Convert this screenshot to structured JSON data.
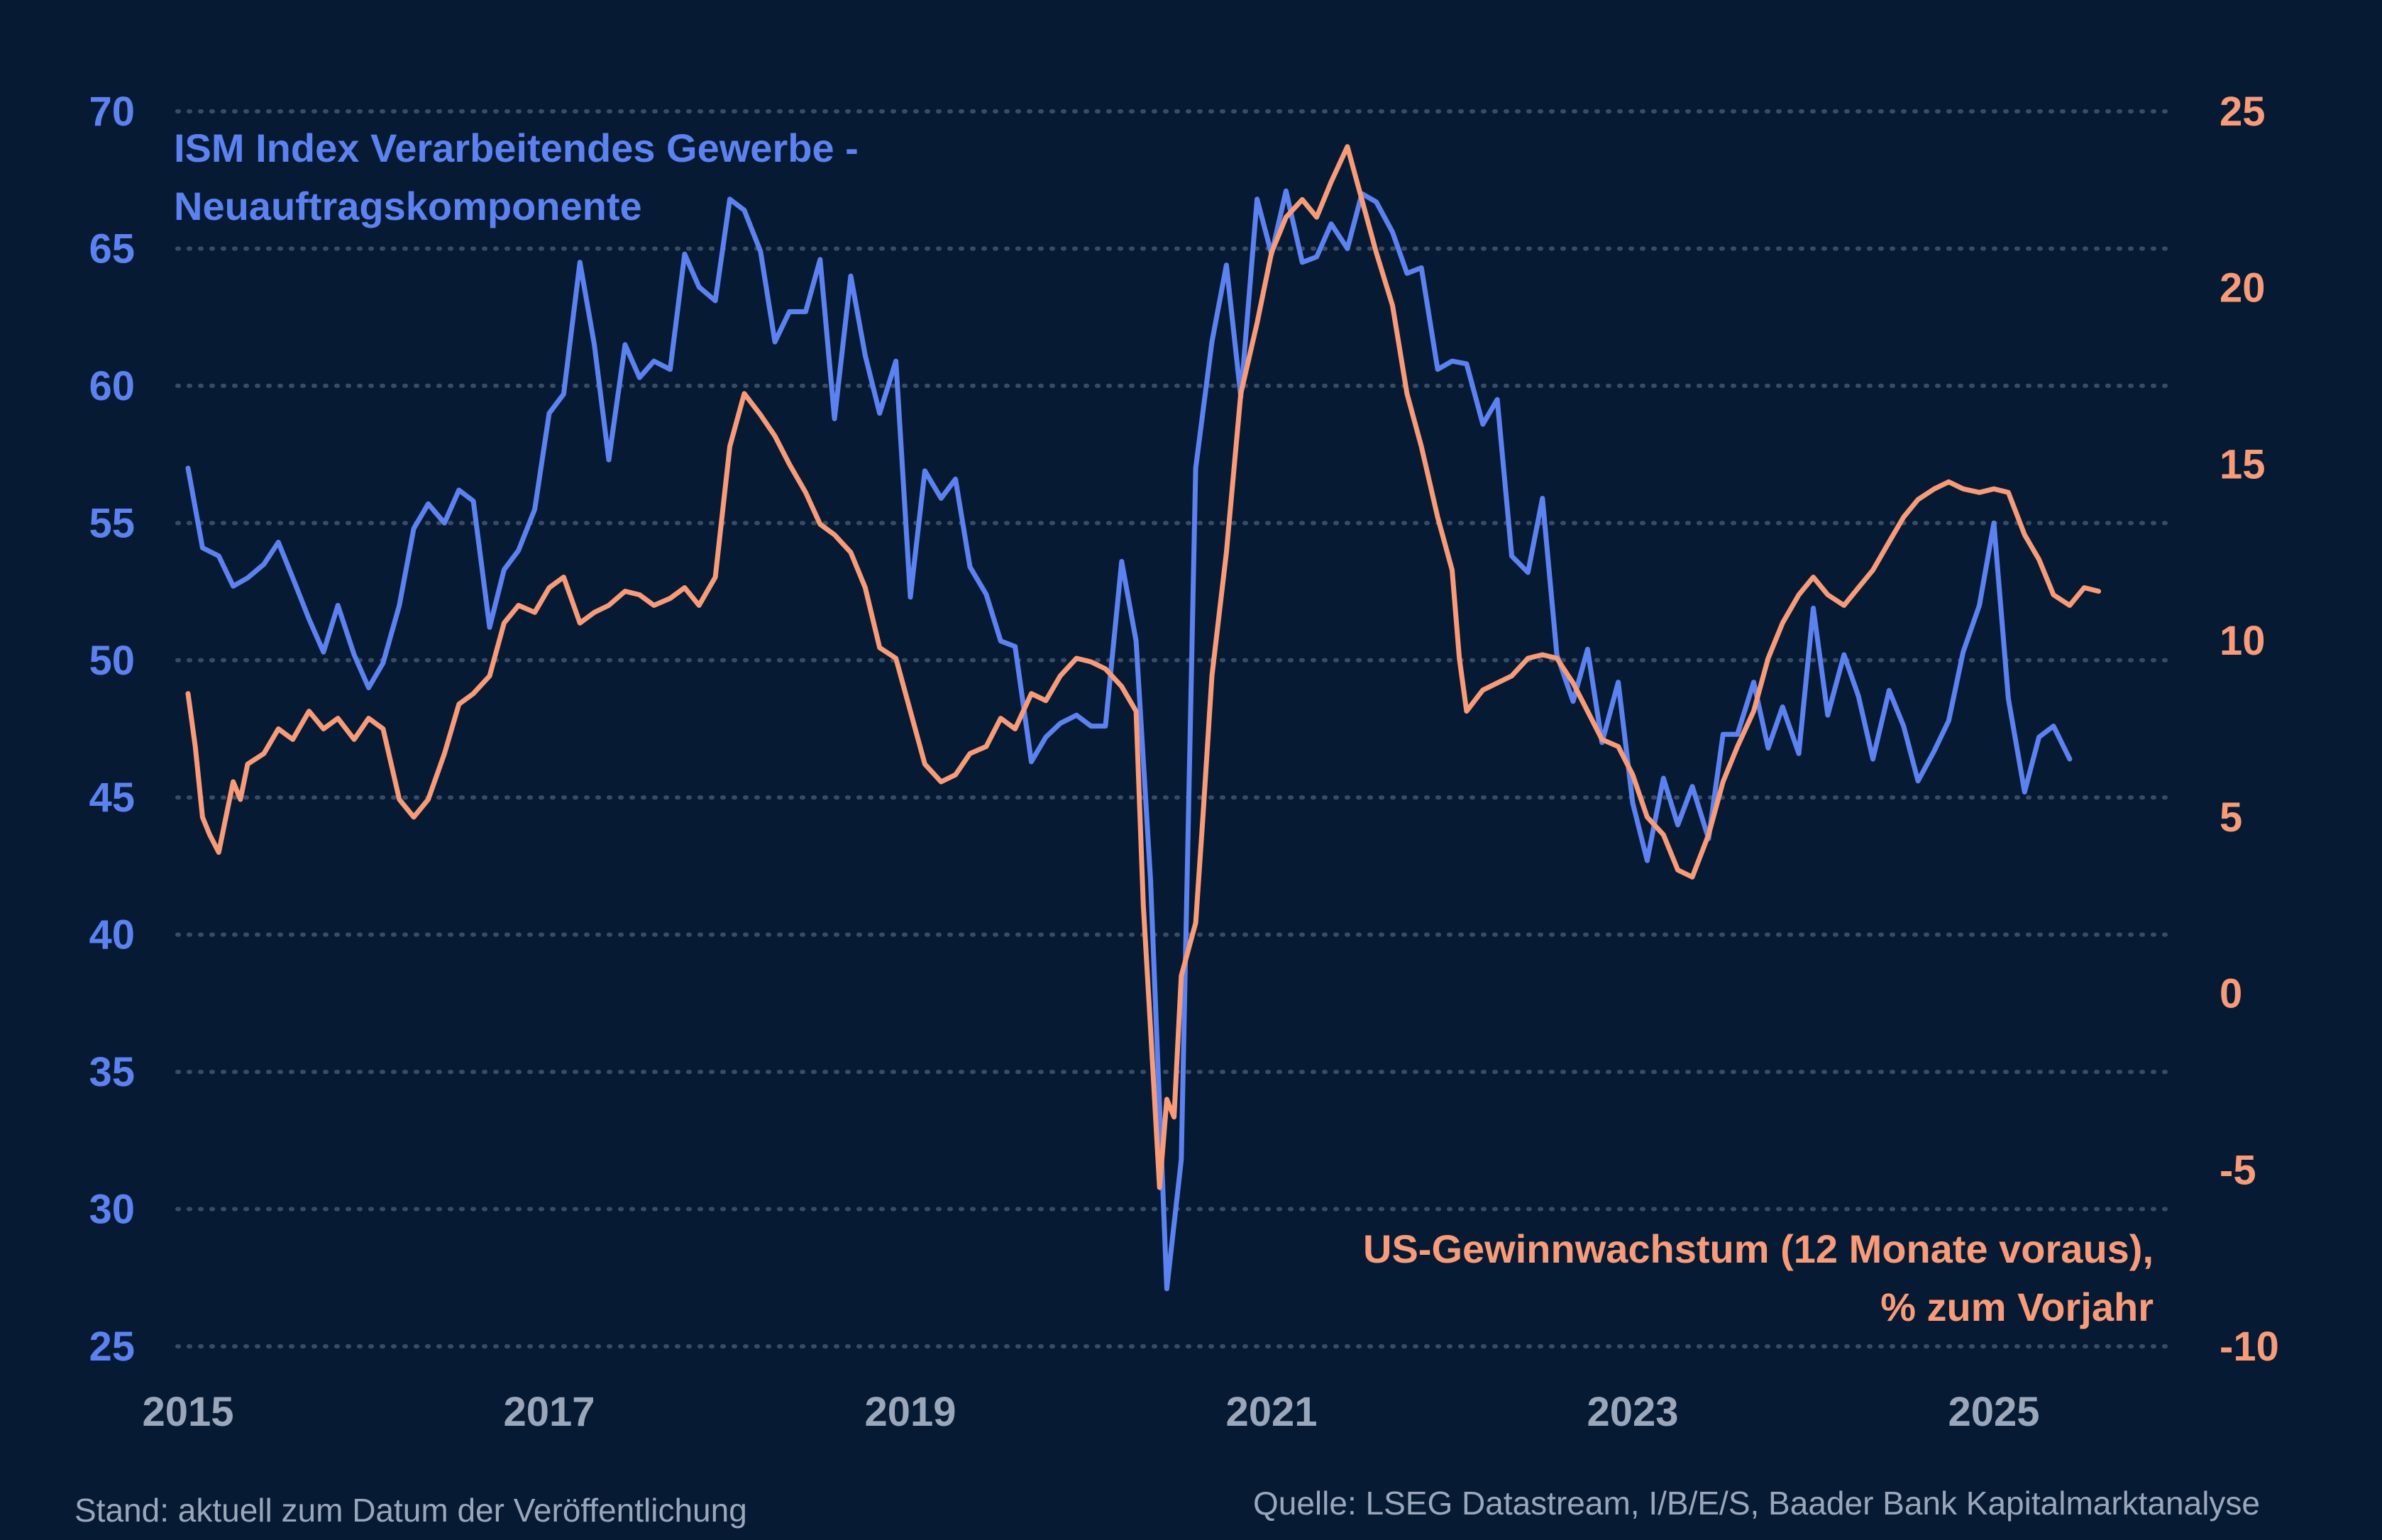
{
  "chart_data": {
    "type": "line",
    "x_ticks": [
      "2015",
      "2017",
      "2019",
      "2021",
      "2023",
      "2025"
    ],
    "y_left": {
      "ticks": [
        70,
        65,
        60,
        55,
        50,
        45,
        40,
        35,
        30,
        25
      ],
      "range": [
        25,
        70
      ]
    },
    "y_right": {
      "ticks": [
        25,
        20,
        15,
        10,
        5,
        0,
        -5,
        -10
      ],
      "range": [
        -10,
        25
      ]
    },
    "grid": true,
    "series": [
      {
        "name": "ISM Index Verarbeitendes Gewerbe - Neuauftragskomponente",
        "axis": "left",
        "color": "#5b82f0",
        "points": [
          [
            2015.0,
            57.0
          ],
          [
            2015.08,
            54.1
          ],
          [
            2015.17,
            53.8
          ],
          [
            2015.25,
            52.7
          ],
          [
            2015.33,
            53.0
          ],
          [
            2015.42,
            53.5
          ],
          [
            2015.5,
            54.3
          ],
          [
            2015.58,
            53.0
          ],
          [
            2015.67,
            51.5
          ],
          [
            2015.75,
            50.3
          ],
          [
            2015.83,
            52.0
          ],
          [
            2015.92,
            50.2
          ],
          [
            2016.0,
            49.0
          ],
          [
            2016.08,
            49.9
          ],
          [
            2016.17,
            52.0
          ],
          [
            2016.25,
            54.8
          ],
          [
            2016.33,
            55.7
          ],
          [
            2016.42,
            55.0
          ],
          [
            2016.5,
            56.2
          ],
          [
            2016.58,
            55.8
          ],
          [
            2016.67,
            51.2
          ],
          [
            2016.75,
            53.3
          ],
          [
            2016.83,
            54.0
          ],
          [
            2016.92,
            55.5
          ],
          [
            2017.0,
            59.0
          ],
          [
            2017.08,
            59.7
          ],
          [
            2017.17,
            64.5
          ],
          [
            2017.25,
            61.5
          ],
          [
            2017.33,
            57.3
          ],
          [
            2017.42,
            61.5
          ],
          [
            2017.5,
            60.3
          ],
          [
            2017.58,
            60.9
          ],
          [
            2017.67,
            60.6
          ],
          [
            2017.75,
            64.8
          ],
          [
            2017.83,
            63.6
          ],
          [
            2017.92,
            63.1
          ],
          [
            2018.0,
            66.8
          ],
          [
            2018.08,
            66.4
          ],
          [
            2018.17,
            64.9
          ],
          [
            2018.25,
            61.6
          ],
          [
            2018.33,
            62.7
          ],
          [
            2018.42,
            62.7
          ],
          [
            2018.5,
            64.6
          ],
          [
            2018.58,
            58.8
          ],
          [
            2018.67,
            64.0
          ],
          [
            2018.75,
            61.1
          ],
          [
            2018.83,
            59.0
          ],
          [
            2018.92,
            60.9
          ],
          [
            2019.0,
            52.3
          ],
          [
            2019.08,
            56.9
          ],
          [
            2019.17,
            55.9
          ],
          [
            2019.25,
            56.6
          ],
          [
            2019.33,
            53.4
          ],
          [
            2019.42,
            52.4
          ],
          [
            2019.5,
            50.7
          ],
          [
            2019.58,
            50.5
          ],
          [
            2019.67,
            46.3
          ],
          [
            2019.75,
            47.2
          ],
          [
            2019.83,
            47.7
          ],
          [
            2019.92,
            48.0
          ],
          [
            2020.0,
            47.6
          ],
          [
            2020.08,
            47.6
          ],
          [
            2020.17,
            53.6
          ],
          [
            2020.25,
            50.7
          ],
          [
            2020.33,
            42.0
          ],
          [
            2020.42,
            27.1
          ],
          [
            2020.5,
            31.8
          ],
          [
            2020.58,
            57.0
          ],
          [
            2020.67,
            61.6
          ],
          [
            2020.75,
            64.4
          ],
          [
            2020.83,
            59.6
          ],
          [
            2020.92,
            66.8
          ],
          [
            2021.0,
            64.8
          ],
          [
            2021.08,
            67.1
          ],
          [
            2021.17,
            64.5
          ],
          [
            2021.25,
            64.7
          ],
          [
            2021.33,
            65.9
          ],
          [
            2021.42,
            65.0
          ],
          [
            2021.5,
            67.0
          ],
          [
            2021.58,
            66.7
          ],
          [
            2021.67,
            65.6
          ],
          [
            2021.75,
            64.1
          ],
          [
            2021.83,
            64.3
          ],
          [
            2021.92,
            60.6
          ],
          [
            2022.0,
            60.9
          ],
          [
            2022.08,
            60.8
          ],
          [
            2022.17,
            58.6
          ],
          [
            2022.25,
            59.5
          ],
          [
            2022.33,
            53.8
          ],
          [
            2022.42,
            53.2
          ],
          [
            2022.5,
            55.9
          ],
          [
            2022.58,
            50.2
          ],
          [
            2022.67,
            48.5
          ],
          [
            2022.75,
            50.4
          ],
          [
            2022.83,
            47.0
          ],
          [
            2022.92,
            49.2
          ],
          [
            2023.0,
            44.8
          ],
          [
            2023.08,
            42.7
          ],
          [
            2023.17,
            45.7
          ],
          [
            2023.25,
            44.0
          ],
          [
            2023.33,
            45.4
          ],
          [
            2023.42,
            43.5
          ],
          [
            2023.5,
            47.3
          ],
          [
            2023.58,
            47.3
          ],
          [
            2023.67,
            49.2
          ],
          [
            2023.75,
            46.8
          ],
          [
            2023.83,
            48.3
          ],
          [
            2023.92,
            46.6
          ],
          [
            2024.0,
            51.9
          ],
          [
            2024.08,
            48.0
          ],
          [
            2024.17,
            50.2
          ],
          [
            2024.25,
            48.7
          ],
          [
            2024.33,
            46.4
          ],
          [
            2024.42,
            48.9
          ],
          [
            2024.5,
            47.6
          ],
          [
            2024.58,
            45.6
          ],
          [
            2024.67,
            46.7
          ],
          [
            2024.75,
            47.8
          ],
          [
            2024.83,
            50.3
          ],
          [
            2024.92,
            52.0
          ],
          [
            2025.0,
            55.0
          ],
          [
            2025.08,
            48.6
          ],
          [
            2025.17,
            45.2
          ],
          [
            2025.25,
            47.2
          ],
          [
            2025.33,
            47.6
          ],
          [
            2025.42,
            46.4
          ]
        ]
      },
      {
        "name": "US-Gewinnwachstum (12 Monate voraus), % zum Vorjahr",
        "axis": "right",
        "color": "#f79b78",
        "points": [
          [
            2015.0,
            8.5
          ],
          [
            2015.04,
            7.0
          ],
          [
            2015.08,
            5.0
          ],
          [
            2015.12,
            4.5
          ],
          [
            2015.17,
            4.0
          ],
          [
            2015.21,
            5.0
          ],
          [
            2015.25,
            6.0
          ],
          [
            2015.29,
            5.5
          ],
          [
            2015.33,
            6.5
          ],
          [
            2015.42,
            6.8
          ],
          [
            2015.5,
            7.5
          ],
          [
            2015.58,
            7.2
          ],
          [
            2015.67,
            8.0
          ],
          [
            2015.75,
            7.5
          ],
          [
            2015.83,
            7.8
          ],
          [
            2015.92,
            7.2
          ],
          [
            2016.0,
            7.8
          ],
          [
            2016.08,
            7.5
          ],
          [
            2016.17,
            5.5
          ],
          [
            2016.25,
            5.0
          ],
          [
            2016.33,
            5.5
          ],
          [
            2016.42,
            6.8
          ],
          [
            2016.5,
            8.2
          ],
          [
            2016.58,
            8.5
          ],
          [
            2016.67,
            9.0
          ],
          [
            2016.75,
            10.5
          ],
          [
            2016.83,
            11.0
          ],
          [
            2016.92,
            10.8
          ],
          [
            2017.0,
            11.5
          ],
          [
            2017.08,
            11.8
          ],
          [
            2017.17,
            10.5
          ],
          [
            2017.25,
            10.8
          ],
          [
            2017.33,
            11.0
          ],
          [
            2017.42,
            11.4
          ],
          [
            2017.5,
            11.3
          ],
          [
            2017.58,
            11.0
          ],
          [
            2017.67,
            11.2
          ],
          [
            2017.75,
            11.5
          ],
          [
            2017.83,
            11.0
          ],
          [
            2017.92,
            11.8
          ],
          [
            2018.0,
            15.5
          ],
          [
            2018.08,
            17.0
          ],
          [
            2018.17,
            16.4
          ],
          [
            2018.25,
            15.8
          ],
          [
            2018.33,
            15.0
          ],
          [
            2018.42,
            14.2
          ],
          [
            2018.5,
            13.3
          ],
          [
            2018.58,
            13.0
          ],
          [
            2018.67,
            12.5
          ],
          [
            2018.75,
            11.5
          ],
          [
            2018.83,
            9.8
          ],
          [
            2018.92,
            9.5
          ],
          [
            2019.0,
            8.0
          ],
          [
            2019.08,
            6.5
          ],
          [
            2019.17,
            6.0
          ],
          [
            2019.25,
            6.2
          ],
          [
            2019.33,
            6.8
          ],
          [
            2019.42,
            7.0
          ],
          [
            2019.5,
            7.8
          ],
          [
            2019.58,
            7.5
          ],
          [
            2019.67,
            8.5
          ],
          [
            2019.75,
            8.3
          ],
          [
            2019.83,
            9.0
          ],
          [
            2019.92,
            9.5
          ],
          [
            2020.0,
            9.4
          ],
          [
            2020.08,
            9.2
          ],
          [
            2020.17,
            8.7
          ],
          [
            2020.25,
            8.0
          ],
          [
            2020.29,
            2.5
          ],
          [
            2020.33,
            -1.0
          ],
          [
            2020.38,
            -5.5
          ],
          [
            2020.42,
            -3.0
          ],
          [
            2020.46,
            -3.5
          ],
          [
            2020.5,
            0.5
          ],
          [
            2020.58,
            2.0
          ],
          [
            2020.62,
            5.0
          ],
          [
            2020.67,
            9.0
          ],
          [
            2020.75,
            12.5
          ],
          [
            2020.83,
            17.0
          ],
          [
            2020.92,
            19.0
          ],
          [
            2021.0,
            21.0
          ],
          [
            2021.08,
            22.0
          ],
          [
            2021.17,
            22.5
          ],
          [
            2021.25,
            22.0
          ],
          [
            2021.33,
            23.0
          ],
          [
            2021.42,
            24.0
          ],
          [
            2021.5,
            22.5
          ],
          [
            2021.58,
            21.0
          ],
          [
            2021.67,
            19.5
          ],
          [
            2021.75,
            17.0
          ],
          [
            2021.83,
            15.5
          ],
          [
            2021.92,
            13.5
          ],
          [
            2022.0,
            12.0
          ],
          [
            2022.04,
            9.5
          ],
          [
            2022.08,
            8.0
          ],
          [
            2022.17,
            8.6
          ],
          [
            2022.25,
            8.8
          ],
          [
            2022.33,
            9.0
          ],
          [
            2022.42,
            9.5
          ],
          [
            2022.5,
            9.6
          ],
          [
            2022.58,
            9.5
          ],
          [
            2022.67,
            8.8
          ],
          [
            2022.75,
            8.0
          ],
          [
            2022.83,
            7.2
          ],
          [
            2022.92,
            7.0
          ],
          [
            2023.0,
            6.2
          ],
          [
            2023.08,
            5.0
          ],
          [
            2023.17,
            4.5
          ],
          [
            2023.25,
            3.5
          ],
          [
            2023.33,
            3.3
          ],
          [
            2023.42,
            4.5
          ],
          [
            2023.5,
            6.0
          ],
          [
            2023.58,
            7.0
          ],
          [
            2023.67,
            8.0
          ],
          [
            2023.75,
            9.5
          ],
          [
            2023.83,
            10.5
          ],
          [
            2023.92,
            11.3
          ],
          [
            2024.0,
            11.8
          ],
          [
            2024.08,
            11.3
          ],
          [
            2024.17,
            11.0
          ],
          [
            2024.25,
            11.5
          ],
          [
            2024.33,
            12.0
          ],
          [
            2024.42,
            12.8
          ],
          [
            2024.5,
            13.5
          ],
          [
            2024.58,
            14.0
          ],
          [
            2024.67,
            14.3
          ],
          [
            2024.75,
            14.5
          ],
          [
            2024.83,
            14.3
          ],
          [
            2024.92,
            14.2
          ],
          [
            2025.0,
            14.3
          ],
          [
            2025.08,
            14.2
          ],
          [
            2025.17,
            13.0
          ],
          [
            2025.25,
            12.3
          ],
          [
            2025.33,
            11.3
          ],
          [
            2025.42,
            11.0
          ],
          [
            2025.5,
            11.5
          ],
          [
            2025.58,
            11.4
          ]
        ]
      }
    ]
  },
  "footer": {
    "left": "Stand: aktuell zum Datum der Veröffentlichung",
    "right": "Quelle: LSEG Datastream, I/B/E/S, Baader Bank Kapitalmarktanalyse"
  },
  "labels": {
    "left_series_line1": "ISM Index Verarbeitendes Gewerbe -",
    "left_series_line2": "Neuauftragskomponente",
    "right_series_line1": "US-Gewinnwachstum (12 Monate voraus),",
    "right_series_line2": "% zum Vorjahr"
  }
}
